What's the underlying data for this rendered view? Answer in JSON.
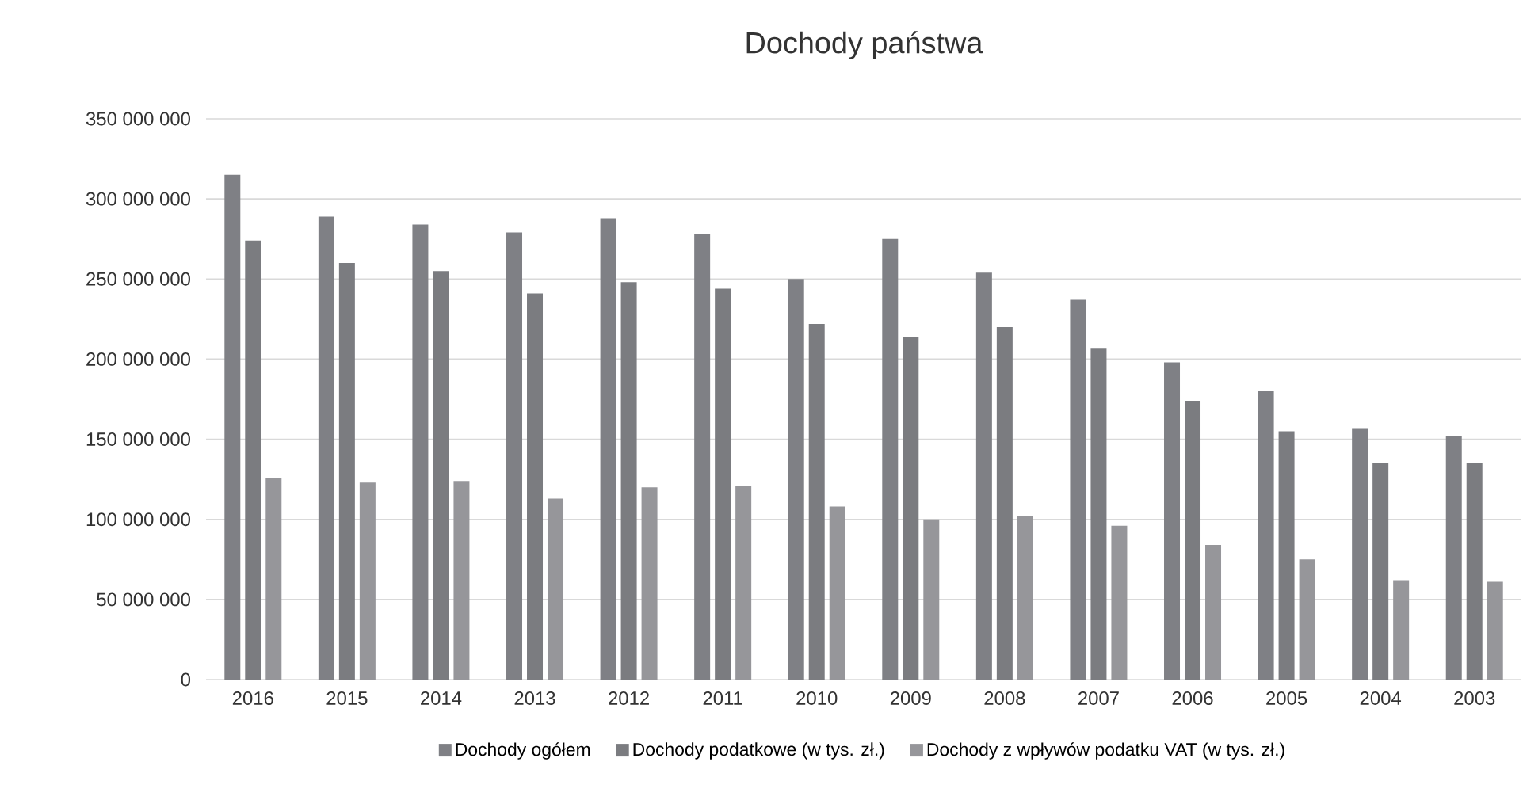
{
  "chart_data": {
    "type": "bar",
    "title": "Dochody państwa",
    "categories": [
      "2016",
      "2015",
      "2014",
      "2013",
      "2012",
      "2011",
      "2010",
      "2009",
      "2008",
      "2007",
      "2006",
      "2005",
      "2004",
      "2003"
    ],
    "series": [
      {
        "name": "Dochody ogółem",
        "color": "#7f8085",
        "values": [
          315000000,
          289000000,
          284000000,
          279000000,
          288000000,
          278000000,
          250000000,
          275000000,
          254000000,
          237000000,
          198000000,
          180000000,
          157000000,
          152000000
        ]
      },
      {
        "name": "Dochody podatkowe (w tys. zł.)",
        "color": "#7b7c80",
        "values": [
          274000000,
          260000000,
          255000000,
          241000000,
          248000000,
          244000000,
          222000000,
          214000000,
          220000000,
          207000000,
          174000000,
          155000000,
          135000000,
          135000000
        ]
      },
      {
        "name": "Dochody z wpływów podatku VAT (w tys. zł.)",
        "color": "#96969a",
        "values": [
          126000000,
          123000000,
          124000000,
          113000000,
          120000000,
          121000000,
          108000000,
          100000000,
          102000000,
          96000000,
          84000000,
          75000000,
          62000000,
          61000000
        ]
      }
    ],
    "ylim": [
      0,
      350000000
    ],
    "yticks": [
      {
        "value": 0,
        "label": "0"
      },
      {
        "value": 50000000,
        "label": "50 000 000"
      },
      {
        "value": 100000000,
        "label": "100 000 000"
      },
      {
        "value": 150000000,
        "label": "150 000 000"
      },
      {
        "value": 200000000,
        "label": "200 000 000"
      },
      {
        "value": 250000000,
        "label": "250 000 000"
      },
      {
        "value": 300000000,
        "label": "300 000 000"
      },
      {
        "value": 350000000,
        "label": "350 000 000"
      }
    ],
    "grid": "y",
    "legend": "bottom"
  }
}
